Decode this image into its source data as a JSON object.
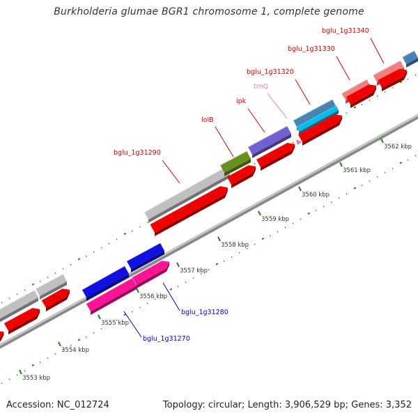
{
  "title": "Burkholderia glumae BGR1 chromosome 1, complete genome",
  "footer": {
    "accession": "Accession: NC_012724",
    "summary": "Topology: circular; Length: 3,906,529 bp; Genes: 3,352"
  },
  "colors": {
    "background": "#ffffff",
    "backbone": "#8a8a8a",
    "tick": "#2e7d1e",
    "cds_forward": "#ee0000",
    "cds_gray": "#c0c0c0",
    "cds_blue": "#1010e0",
    "cds_pink": "#ff1493",
    "cds_green": "#6b8e23",
    "cds_purple": "#7060d0",
    "cds_steelblue": "#4a82b4",
    "cds_cyan": "#10b8e8",
    "cds_salmon": "#f08080",
    "trna": "#ff69b4",
    "label_red": "#d00000",
    "label_blue": "#0000c0",
    "label_pink": "#e080c0"
  },
  "kbp_labels": [
    "3553 kbp",
    "3554 kbp",
    "3555 kbp",
    "3556 kbp",
    "3557 kbp",
    "3558 kbp",
    "3559 kbp",
    "3560 kbp",
    "3561 kbp",
    "3562 kbp"
  ],
  "gene_labels": [
    {
      "name": "bglu_1g31340",
      "color": "label_red"
    },
    {
      "name": "bglu_1g31330",
      "color": "label_red"
    },
    {
      "name": "bglu_1g31320",
      "color": "label_red"
    },
    {
      "name": "trnQ",
      "color": "label_pink"
    },
    {
      "name": "ipk",
      "color": "label_red"
    },
    {
      "name": "lolB",
      "color": "label_red"
    },
    {
      "name": "bglu_1g31290",
      "color": "label_red"
    },
    {
      "name": "bglu_1g31280",
      "color": "label_blue"
    },
    {
      "name": "bglu_1g31270",
      "color": "label_blue"
    }
  ]
}
